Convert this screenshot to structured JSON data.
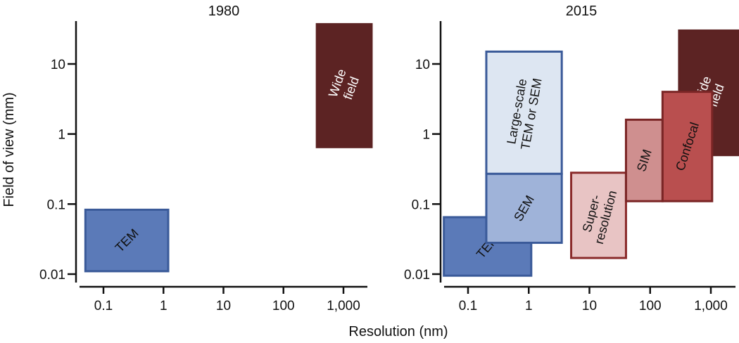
{
  "chart_data": {
    "type": "range-box",
    "xlabel": "Resolution (nm)",
    "ylabel": "Field of view (mm)",
    "x_scale": "log",
    "y_scale": "log",
    "x_ticks": [
      {
        "value": 0.1,
        "label": "0.1"
      },
      {
        "value": 1,
        "label": "1"
      },
      {
        "value": 10,
        "label": "10"
      },
      {
        "value": 100,
        "label": "100"
      },
      {
        "value": 1000,
        "label": "1,000"
      }
    ],
    "y_ticks": [
      {
        "value": 0.01,
        "label": "0.01"
      },
      {
        "value": 0.1,
        "label": "0.1"
      },
      {
        "value": 1,
        "label": "1"
      },
      {
        "value": 10,
        "label": "10"
      }
    ],
    "xlim": [
      0.03,
      3000
    ],
    "ylim": [
      0.006,
      40
    ],
    "panels": [
      {
        "title": "1980",
        "boxes": [
          {
            "label": [
              "TEM"
            ],
            "x": [
              0.05,
              1.2
            ],
            "y": [
              0.011,
              0.083
            ],
            "fill": "#5b7ab8",
            "stroke": "#3a5a99",
            "text_color": "dark",
            "rotate": -45
          },
          {
            "label": [
              "Wide",
              "field"
            ],
            "x": [
              360,
              3500
            ],
            "y": [
              0.65,
              37
            ],
            "fill": "#5c2323",
            "stroke": "#5c2323",
            "text_color": "light",
            "rotate": -70
          }
        ]
      },
      {
        "title": "2015",
        "boxes": [
          {
            "label": [
              "Large-scale",
              "TEM or SEM"
            ],
            "x": [
              0.2,
              3.5
            ],
            "y": [
              0.27,
              15
            ],
            "fill": "#dde6f2",
            "stroke": "#3a5a99",
            "text_color": "dark",
            "rotate": -80
          },
          {
            "label": [
              "TEM"
            ],
            "x": [
              0.04,
              1.1
            ],
            "y": [
              0.0095,
              0.065
            ],
            "fill": "#5b7ab8",
            "stroke": "#3a5a99",
            "text_color": "dark",
            "rotate": -50
          },
          {
            "label": [
              "SEM"
            ],
            "x": [
              0.2,
              3.5
            ],
            "y": [
              0.028,
              0.27
            ],
            "fill": "#9fb3d9",
            "stroke": "#3a5a99",
            "text_color": "dark",
            "rotate": -60
          },
          {
            "label": [
              "Super-",
              "resolution"
            ],
            "x": [
              5,
              40
            ],
            "y": [
              0.017,
              0.28
            ],
            "fill": "#e8c4c4",
            "stroke": "#8a2a2a",
            "text_color": "dark",
            "rotate": -75
          },
          {
            "label": [
              "SIM"
            ],
            "x": [
              40,
              160
            ],
            "y": [
              0.11,
              1.6
            ],
            "fill": "#cf8f8f",
            "stroke": "#7a2525",
            "text_color": "dark",
            "rotate": -72
          },
          {
            "label": [
              "Wide",
              "field"
            ],
            "x": [
              300,
              3200
            ],
            "y": [
              0.5,
              30
            ],
            "fill": "#5c2323",
            "stroke": "#5c2323",
            "text_color": "light",
            "rotate": -70
          },
          {
            "label": [
              "Confocal"
            ],
            "x": [
              160,
              1050
            ],
            "y": [
              0.11,
              4
            ],
            "fill": "#b94f4f",
            "stroke": "#7a2525",
            "text_color": "dark",
            "rotate": -72
          }
        ]
      }
    ]
  }
}
